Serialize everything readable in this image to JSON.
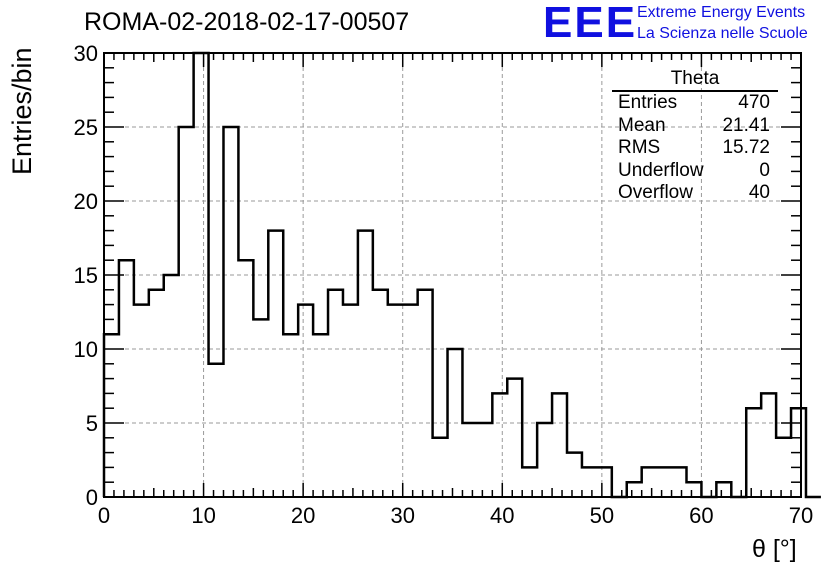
{
  "title": "ROMA-02-2018-02-17-00507",
  "logo": {
    "mark": "EEE",
    "line1": "Extreme Energy Events",
    "line2": "La Scienza nelle Scuole"
  },
  "stats": {
    "name": "Theta",
    "rows": [
      {
        "label": "Entries",
        "value": "470"
      },
      {
        "label": "Mean",
        "value": "21.41"
      },
      {
        "label": "RMS",
        "value": "15.72"
      },
      {
        "label": "Underflow",
        "value": "0"
      },
      {
        "label": "Overflow",
        "value": "40"
      }
    ]
  },
  "chart_data": {
    "type": "bar",
    "style": "step-histogram",
    "xlabel": "θ [°]",
    "ylabel": "Entries/bin",
    "xlim": [
      0,
      70
    ],
    "ylim": [
      0,
      30
    ],
    "grid": true,
    "xticks": [
      0,
      10,
      20,
      30,
      40,
      50,
      60,
      70
    ],
    "yticks": [
      0,
      5,
      10,
      15,
      20,
      25,
      30
    ],
    "bin_width": 1.5,
    "bin_edges_start": 0,
    "values": [
      11,
      16,
      13,
      14,
      15,
      25,
      30,
      9,
      25,
      16,
      12,
      18,
      11,
      13,
      11,
      14,
      13,
      18,
      14,
      13,
      13,
      14,
      4,
      10,
      5,
      5,
      7,
      8,
      2,
      5,
      7,
      3,
      2,
      2,
      0,
      1,
      2,
      2,
      2,
      1,
      0,
      1,
      0,
      6,
      7,
      4,
      6,
      0
    ]
  }
}
